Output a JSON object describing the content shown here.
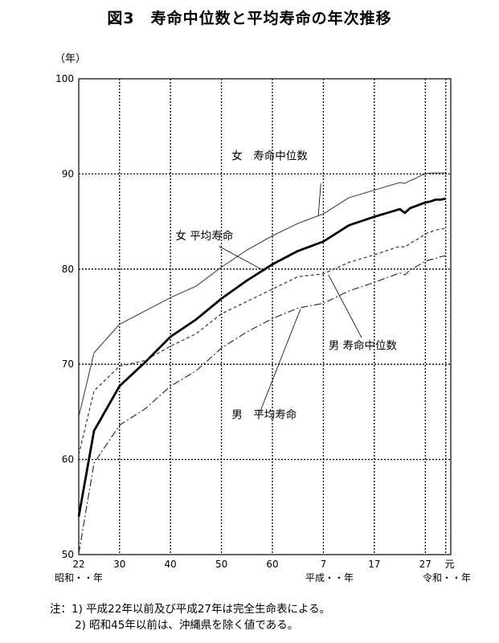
{
  "title": "図3　寿命中位数と平均寿命の年次推移",
  "unit_label": "（年）",
  "era_labels": {
    "showa": "昭和・・年",
    "heisei": "平成・・年",
    "reiwa": "令和・・年"
  },
  "notes": {
    "n1": "注：1) 平成22年以前及び平成27年は完全生命表による。",
    "n2": "2) 昭和45年以前は、沖縄県を除く値である。"
  },
  "chart_data": {
    "type": "line",
    "x_unit": "calendar year",
    "xlim": [
      1947,
      2020
    ],
    "ylim": [
      50,
      100
    ],
    "y_ticks": [
      50,
      60,
      70,
      80,
      90,
      100
    ],
    "x_ticks": [
      {
        "x": 1947,
        "label": "22"
      },
      {
        "x": 1955,
        "label": "30"
      },
      {
        "x": 1965,
        "label": "40"
      },
      {
        "x": 1975,
        "label": "50"
      },
      {
        "x": 1985,
        "label": "60"
      },
      {
        "x": 1995,
        "label": "7"
      },
      {
        "x": 2005,
        "label": "17"
      },
      {
        "x": 2015,
        "label": "27"
      },
      {
        "x": 2019,
        "label": "元"
      }
    ],
    "grid": true,
    "series": [
      {
        "name": "女　寿命中位数",
        "style": "thin-solid",
        "color": "#444444",
        "points": [
          [
            1947,
            64.5
          ],
          [
            1950,
            71.2
          ],
          [
            1955,
            74.2
          ],
          [
            1960,
            75.6
          ],
          [
            1965,
            77.0
          ],
          [
            1970,
            78.2
          ],
          [
            1975,
            80.2
          ],
          [
            1980,
            82.0
          ],
          [
            1985,
            83.5
          ],
          [
            1990,
            84.8
          ],
          [
            1995,
            85.8
          ],
          [
            2000,
            87.5
          ],
          [
            2005,
            88.3
          ],
          [
            2010,
            89.1
          ],
          [
            2011,
            89.0
          ],
          [
            2012,
            89.3
          ],
          [
            2013,
            89.5
          ],
          [
            2014,
            89.8
          ],
          [
            2015,
            90.0
          ],
          [
            2016,
            90.1
          ],
          [
            2017,
            90.1
          ],
          [
            2018,
            90.1
          ],
          [
            2019,
            90.1
          ]
        ]
      },
      {
        "name": "女　平均寿命",
        "style": "thick-solid",
        "color": "#000000",
        "points": [
          [
            1947,
            54.0
          ],
          [
            1950,
            63.0
          ],
          [
            1955,
            67.7
          ],
          [
            1960,
            70.2
          ],
          [
            1965,
            72.9
          ],
          [
            1970,
            74.7
          ],
          [
            1975,
            76.9
          ],
          [
            1980,
            78.8
          ],
          [
            1985,
            80.5
          ],
          [
            1990,
            81.9
          ],
          [
            1995,
            82.9
          ],
          [
            2000,
            84.6
          ],
          [
            2005,
            85.5
          ],
          [
            2010,
            86.3
          ],
          [
            2011,
            85.9
          ],
          [
            2012,
            86.4
          ],
          [
            2013,
            86.6
          ],
          [
            2014,
            86.8
          ],
          [
            2015,
            87.0
          ],
          [
            2016,
            87.1
          ],
          [
            2017,
            87.3
          ],
          [
            2018,
            87.3
          ],
          [
            2019,
            87.4
          ]
        ]
      },
      {
        "name": "男　寿命中位数",
        "style": "dashed",
        "color": "#333333",
        "points": [
          [
            1947,
            60.5
          ],
          [
            1950,
            67.2
          ],
          [
            1955,
            69.8
          ],
          [
            1960,
            70.4
          ],
          [
            1965,
            71.9
          ],
          [
            1970,
            73.2
          ],
          [
            1975,
            75.3
          ],
          [
            1980,
            76.6
          ],
          [
            1985,
            77.9
          ],
          [
            1990,
            79.2
          ],
          [
            1995,
            79.5
          ],
          [
            2000,
            80.7
          ],
          [
            2005,
            81.5
          ],
          [
            2010,
            82.4
          ],
          [
            2011,
            82.3
          ],
          [
            2012,
            82.7
          ],
          [
            2013,
            83.0
          ],
          [
            2014,
            83.3
          ],
          [
            2015,
            83.7
          ],
          [
            2016,
            83.9
          ],
          [
            2017,
            84.1
          ],
          [
            2018,
            84.2
          ],
          [
            2019,
            84.3
          ]
        ]
      },
      {
        "name": "男　平均寿命",
        "style": "dash-dot",
        "color": "#333333",
        "points": [
          [
            1947,
            50.1
          ],
          [
            1950,
            59.6
          ],
          [
            1955,
            63.6
          ],
          [
            1960,
            65.3
          ],
          [
            1965,
            67.7
          ],
          [
            1970,
            69.3
          ],
          [
            1975,
            71.7
          ],
          [
            1980,
            73.4
          ],
          [
            1985,
            74.8
          ],
          [
            1990,
            75.9
          ],
          [
            1995,
            76.4
          ],
          [
            2000,
            77.7
          ],
          [
            2005,
            78.6
          ],
          [
            2010,
            79.6
          ],
          [
            2011,
            79.4
          ],
          [
            2012,
            79.9
          ],
          [
            2013,
            80.2
          ],
          [
            2014,
            80.5
          ],
          [
            2015,
            80.8
          ],
          [
            2016,
            81.0
          ],
          [
            2017,
            81.1
          ],
          [
            2018,
            81.3
          ],
          [
            2019,
            81.4
          ]
        ]
      }
    ],
    "annotations": [
      {
        "text": "女　寿命中位数",
        "x": 1977,
        "y": 91.5
      },
      {
        "text": "女 平均寿命",
        "x": 1966,
        "y": 83.1
      },
      {
        "text": "男 寿命中位数",
        "x": 1996,
        "y": 71.6
      },
      {
        "text": "男　平均寿命",
        "x": 1977,
        "y": 64.3
      }
    ]
  }
}
